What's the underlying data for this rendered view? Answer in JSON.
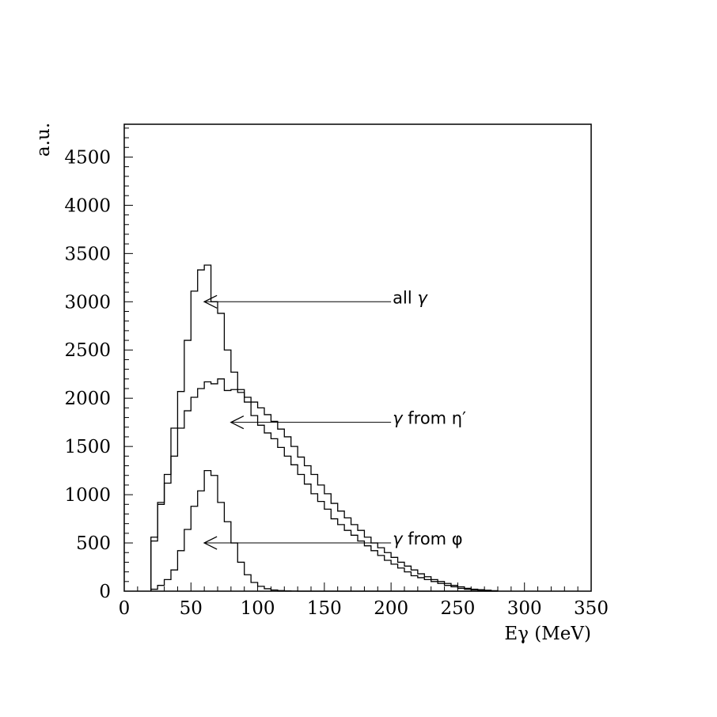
{
  "chart_data": {
    "type": "histogram",
    "xlabel": "Eγ (MeV)",
    "ylabel": "a.u.",
    "xlim": [
      0,
      350
    ],
    "ylim": [
      0,
      4840
    ],
    "bin_width": 5,
    "bin_start": 20,
    "x_ticks": [
      "0",
      "50",
      "100",
      "150",
      "200",
      "250",
      "300",
      "350"
    ],
    "y_ticks": [
      "0",
      "500",
      "1000",
      "1500",
      "2000",
      "2500",
      "3000",
      "3500",
      "4000",
      "4500"
    ],
    "series": [
      {
        "label": "all γ",
        "values": [
          560,
          920,
          1210,
          1690,
          2070,
          2600,
          3110,
          3330,
          3380,
          3000,
          2880,
          2500,
          2270,
          2090,
          1960,
          1820,
          1720,
          1640,
          1580,
          1490,
          1400,
          1310,
          1210,
          1110,
          1010,
          930,
          850,
          750,
          690,
          630,
          580,
          520,
          470,
          420,
          370,
          320,
          280,
          240,
          200,
          160,
          140,
          120,
          100,
          80,
          60,
          45,
          30,
          20,
          15,
          10,
          5,
          2
        ]
      },
      {
        "label": "γ from η'",
        "values": [
          520,
          900,
          1120,
          1400,
          1690,
          1870,
          2010,
          2100,
          2170,
          2150,
          2200,
          2080,
          2090,
          2060,
          2010,
          1960,
          1900,
          1830,
          1760,
          1680,
          1600,
          1500,
          1390,
          1300,
          1210,
          1100,
          1010,
          910,
          830,
          760,
          690,
          630,
          560,
          500,
          450,
          400,
          350,
          300,
          260,
          220,
          180,
          150,
          120,
          100,
          80,
          60,
          45,
          30,
          20,
          15,
          10,
          5
        ]
      },
      {
        "label": "γ from φ",
        "values": [
          20,
          60,
          120,
          220,
          420,
          640,
          880,
          1040,
          1250,
          1200,
          920,
          720,
          500,
          300,
          170,
          90,
          50,
          25,
          12,
          6,
          3,
          1,
          0,
          0,
          0,
          0,
          0,
          0,
          0,
          0,
          0,
          0,
          0,
          0,
          0,
          0,
          0,
          0,
          0,
          0,
          0,
          0,
          0,
          0,
          0,
          0,
          0,
          0,
          0,
          0,
          0,
          0
        ]
      }
    ],
    "annotations": [
      {
        "text_prefix": "all ",
        "symbol": "γ",
        "text_suffix": "",
        "arrow_from": [
          200,
          3000
        ],
        "arrow_to": [
          60,
          3000
        ]
      },
      {
        "text_prefix": "",
        "symbol": "γ",
        "text_suffix": " from η′",
        "arrow_from": [
          200,
          1750
        ],
        "arrow_to": [
          80,
          1750
        ]
      },
      {
        "text_prefix": "",
        "symbol": "γ",
        "text_suffix": " from φ",
        "arrow_from": [
          200,
          500
        ],
        "arrow_to": [
          60,
          500
        ]
      }
    ]
  }
}
